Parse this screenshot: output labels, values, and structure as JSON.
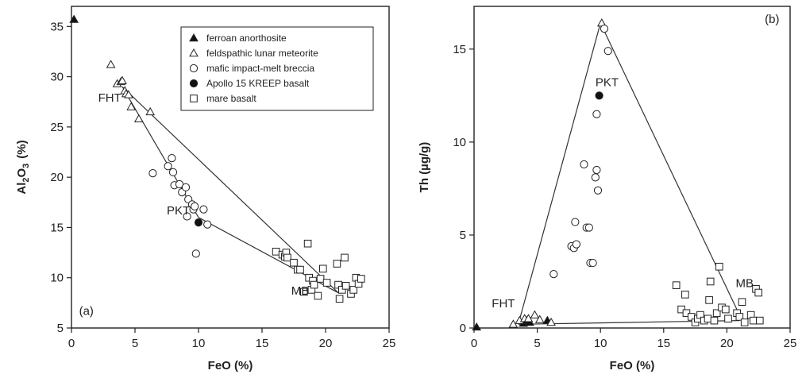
{
  "chart_data": [
    {
      "type": "scatter",
      "panel_label": "(a)",
      "xlabel": "FeO (%)",
      "ylabel_main": "Al",
      "ylabel_sub": "2",
      "ylabel_main2": "O",
      "ylabel_sub2": "3",
      "ylabel_unit": "(%)",
      "xlim": [
        0,
        25
      ],
      "ylim": [
        5,
        37
      ],
      "xticks": [
        0,
        5,
        10,
        15,
        20,
        25
      ],
      "yticks": [
        5,
        10,
        15,
        20,
        25,
        30,
        35
      ],
      "legend_position": "top-right",
      "legend": [
        {
          "label": "ferroan anorthosite",
          "marker": "filled-triangle"
        },
        {
          "label": "feldspathic lunar meteorite",
          "marker": "open-triangle"
        },
        {
          "label": "mafic impact-melt breccia",
          "marker": "open-circle"
        },
        {
          "label": "Apollo 15 KREEP basalt",
          "marker": "filled-circle"
        },
        {
          "label": "mare basalt",
          "marker": "open-square"
        }
      ],
      "annotations": [
        {
          "text": "FHT",
          "x": 2.1,
          "y": 27.5
        },
        {
          "text": "PKT",
          "x": 7.5,
          "y": 16.3
        },
        {
          "text": "MB",
          "x": 17.3,
          "y": 8.3
        },
        {
          "text": "(a)",
          "x": 0.6,
          "y": 6.3
        }
      ],
      "lines": [
        [
          [
            4.0,
            29.0
          ],
          [
            21.0,
            8.5
          ]
        ],
        [
          [
            4.0,
            29.0
          ],
          [
            10.0,
            16.0
          ]
        ],
        [
          [
            10.0,
            16.0
          ],
          [
            21.0,
            8.5
          ]
        ]
      ],
      "series": [
        {
          "name": "ferroan anorthosite",
          "marker": "filled-triangle",
          "points": [
            [
              0.2,
              35.7
            ]
          ]
        },
        {
          "name": "feldspathic lunar meteorite",
          "marker": "open-triangle",
          "points": [
            [
              3.1,
              31.2
            ],
            [
              3.6,
              29.3
            ],
            [
              3.9,
              29.5
            ],
            [
              4.0,
              29.6
            ],
            [
              4.2,
              28.6
            ],
            [
              4.3,
              28.3
            ],
            [
              4.5,
              28.2
            ],
            [
              4.7,
              27.0
            ],
            [
              5.3,
              25.8
            ],
            [
              6.2,
              26.5
            ]
          ]
        },
        {
          "name": "mafic impact-melt breccia",
          "marker": "open-circle",
          "points": [
            [
              6.4,
              20.4
            ],
            [
              7.6,
              21.1
            ],
            [
              7.9,
              21.9
            ],
            [
              8.0,
              20.5
            ],
            [
              8.1,
              19.2
            ],
            [
              8.5,
              19.3
            ],
            [
              8.7,
              18.5
            ],
            [
              9.0,
              19.0
            ],
            [
              9.1,
              16.1
            ],
            [
              9.2,
              17.8
            ],
            [
              9.5,
              17.3
            ],
            [
              9.6,
              16.8
            ],
            [
              9.7,
              17.1
            ],
            [
              9.8,
              12.4
            ],
            [
              10.4,
              16.8
            ],
            [
              10.7,
              15.3
            ]
          ]
        },
        {
          "name": "Apollo 15 KREEP basalt",
          "marker": "filled-circle",
          "points": [
            [
              10.0,
              15.5
            ]
          ]
        },
        {
          "name": "mare basalt",
          "marker": "open-square",
          "points": [
            [
              16.1,
              12.6
            ],
            [
              16.6,
              12.3
            ],
            [
              16.8,
              12.1
            ],
            [
              16.9,
              12.5
            ],
            [
              17.0,
              12.0
            ],
            [
              17.5,
              11.5
            ],
            [
              17.8,
              10.8
            ],
            [
              18.0,
              10.8
            ],
            [
              18.3,
              8.6
            ],
            [
              18.6,
              13.4
            ],
            [
              18.7,
              10.0
            ],
            [
              18.9,
              8.8
            ],
            [
              19.0,
              9.7
            ],
            [
              19.1,
              9.3
            ],
            [
              19.4,
              8.2
            ],
            [
              19.6,
              9.9
            ],
            [
              19.8,
              10.9
            ],
            [
              20.1,
              9.5
            ],
            [
              20.9,
              11.4
            ],
            [
              21.0,
              9.3
            ],
            [
              21.1,
              7.9
            ],
            [
              21.3,
              8.8
            ],
            [
              21.5,
              12.0
            ],
            [
              21.6,
              9.2
            ],
            [
              22.0,
              8.4
            ],
            [
              22.2,
              8.8
            ],
            [
              22.4,
              10.0
            ],
            [
              22.6,
              9.4
            ],
            [
              22.8,
              9.9
            ]
          ]
        }
      ]
    },
    {
      "type": "scatter",
      "panel_label": "(b)",
      "xlabel": "FeO (%)",
      "ylabel": "Th (µg/g)",
      "xlim": [
        0,
        25
      ],
      "ylim": [
        0,
        17.3
      ],
      "xticks": [
        0,
        5,
        10,
        15,
        20,
        25
      ],
      "yticks": [
        0,
        5,
        10,
        15
      ],
      "annotations": [
        {
          "text": "PKT",
          "x": 9.6,
          "y": 13.0
        },
        {
          "text": "MB",
          "x": 20.7,
          "y": 2.2
        },
        {
          "text": "FHT",
          "x": 1.4,
          "y": 1.1
        },
        {
          "text": "(b)",
          "x": 23.0,
          "y": 16.4
        }
      ],
      "lines": [
        [
          [
            3.5,
            0.2
          ],
          [
            10.0,
            16.4
          ]
        ],
        [
          [
            10.0,
            16.4
          ],
          [
            21.0,
            0.7
          ]
        ],
        [
          [
            3.5,
            0.2
          ],
          [
            21.0,
            0.4
          ]
        ]
      ],
      "series": [
        {
          "name": "ferroan anorthosite",
          "marker": "filled-triangle",
          "points": [
            [
              0.2,
              0.05
            ],
            [
              3.9,
              0.25
            ],
            [
              4.2,
              0.4
            ],
            [
              4.4,
              0.3
            ],
            [
              5.8,
              0.4
            ]
          ]
        },
        {
          "name": "feldspathic lunar meteorite",
          "marker": "open-triangle",
          "points": [
            [
              3.1,
              0.2
            ],
            [
              3.6,
              0.4
            ],
            [
              4.0,
              0.5
            ],
            [
              4.3,
              0.5
            ],
            [
              4.8,
              0.7
            ],
            [
              5.2,
              0.45
            ],
            [
              6.1,
              0.3
            ],
            [
              10.1,
              16.4
            ]
          ]
        },
        {
          "name": "mafic impact-melt breccia",
          "marker": "open-circle",
          "points": [
            [
              6.3,
              2.9
            ],
            [
              7.7,
              4.4
            ],
            [
              7.9,
              4.3
            ],
            [
              8.0,
              5.7
            ],
            [
              8.1,
              4.5
            ],
            [
              8.7,
              8.8
            ],
            [
              8.9,
              5.4
            ],
            [
              9.1,
              5.4
            ],
            [
              9.2,
              3.5
            ],
            [
              9.4,
              3.5
            ],
            [
              9.6,
              8.1
            ],
            [
              9.7,
              8.5
            ],
            [
              9.7,
              11.5
            ],
            [
              9.8,
              7.4
            ],
            [
              10.3,
              16.1
            ],
            [
              10.6,
              14.9
            ]
          ]
        },
        {
          "name": "Apollo 15 KREEP basalt",
          "marker": "filled-circle",
          "points": [
            [
              9.9,
              12.5
            ]
          ]
        },
        {
          "name": "mare basalt",
          "marker": "open-square",
          "points": [
            [
              16.0,
              2.3
            ],
            [
              16.4,
              1.0
            ],
            [
              16.7,
              1.8
            ],
            [
              16.8,
              0.8
            ],
            [
              17.2,
              0.6
            ],
            [
              17.5,
              0.3
            ],
            [
              17.7,
              0.5
            ],
            [
              17.9,
              0.7
            ],
            [
              18.2,
              0.4
            ],
            [
              18.5,
              0.5
            ],
            [
              18.6,
              1.5
            ],
            [
              18.7,
              2.5
            ],
            [
              19.0,
              0.4
            ],
            [
              19.2,
              0.8
            ],
            [
              19.4,
              3.3
            ],
            [
              19.6,
              1.1
            ],
            [
              19.9,
              1.0
            ],
            [
              20.1,
              0.5
            ],
            [
              20.8,
              0.8
            ],
            [
              21.0,
              0.6
            ],
            [
              21.2,
              1.4
            ],
            [
              21.4,
              0.3
            ],
            [
              21.9,
              0.7
            ],
            [
              22.1,
              0.4
            ],
            [
              22.3,
              2.1
            ],
            [
              22.6,
              0.4
            ],
            [
              22.5,
              1.9
            ]
          ]
        }
      ]
    }
  ]
}
